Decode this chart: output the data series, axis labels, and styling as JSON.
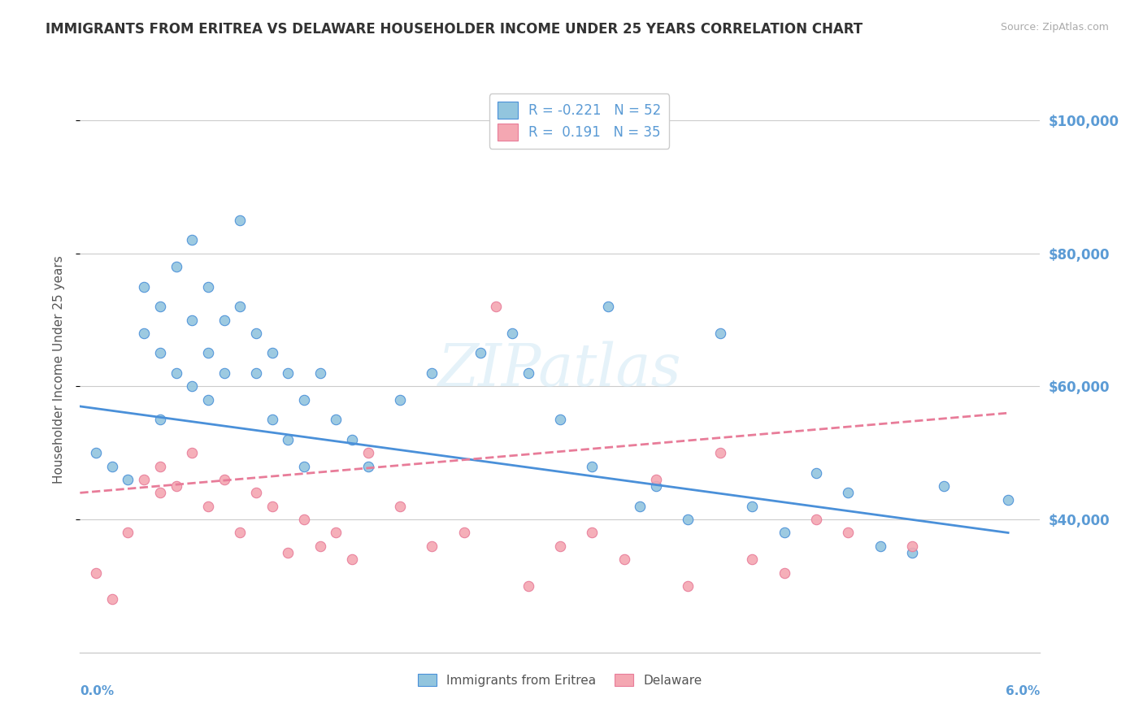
{
  "title": "IMMIGRANTS FROM ERITREA VS DELAWARE HOUSEHOLDER INCOME UNDER 25 YEARS CORRELATION CHART",
  "source": "Source: ZipAtlas.com",
  "ylabel": "Householder Income Under 25 years",
  "legend_label1": "Immigrants from Eritrea",
  "legend_label2": "Delaware",
  "r1": -0.221,
  "n1": 52,
  "r2": 0.191,
  "n2": 35,
  "color_blue": "#92c5de",
  "color_pink": "#f4a7b2",
  "line_blue": "#4a90d9",
  "line_pink": "#e87c99",
  "watermark": "ZIPatlas",
  "xmin": 0.0,
  "xmax": 0.06,
  "ymin": 20000,
  "ymax": 105000,
  "yticks": [
    40000,
    60000,
    80000,
    100000
  ],
  "ytick_labels": [
    "$40,000",
    "$60,000",
    "$80,000",
    "$100,000"
  ],
  "blue_scatter_x": [
    0.001,
    0.002,
    0.003,
    0.004,
    0.004,
    0.005,
    0.005,
    0.005,
    0.006,
    0.006,
    0.007,
    0.007,
    0.007,
    0.008,
    0.008,
    0.008,
    0.009,
    0.009,
    0.01,
    0.01,
    0.011,
    0.011,
    0.012,
    0.012,
    0.013,
    0.013,
    0.014,
    0.014,
    0.015,
    0.016,
    0.017,
    0.018,
    0.02,
    0.022,
    0.025,
    0.027,
    0.028,
    0.03,
    0.032,
    0.033,
    0.035,
    0.036,
    0.038,
    0.04,
    0.042,
    0.044,
    0.046,
    0.048,
    0.05,
    0.052,
    0.054,
    0.058
  ],
  "blue_scatter_y": [
    50000,
    48000,
    46000,
    75000,
    68000,
    72000,
    65000,
    55000,
    78000,
    62000,
    82000,
    70000,
    60000,
    75000,
    65000,
    58000,
    70000,
    62000,
    85000,
    72000,
    68000,
    62000,
    65000,
    55000,
    62000,
    52000,
    58000,
    48000,
    62000,
    55000,
    52000,
    48000,
    58000,
    62000,
    65000,
    68000,
    62000,
    55000,
    48000,
    72000,
    42000,
    45000,
    40000,
    68000,
    42000,
    38000,
    47000,
    44000,
    36000,
    35000,
    45000,
    43000
  ],
  "pink_scatter_x": [
    0.001,
    0.002,
    0.003,
    0.004,
    0.005,
    0.005,
    0.006,
    0.007,
    0.008,
    0.009,
    0.01,
    0.011,
    0.012,
    0.013,
    0.014,
    0.015,
    0.016,
    0.017,
    0.018,
    0.02,
    0.022,
    0.024,
    0.026,
    0.028,
    0.03,
    0.032,
    0.034,
    0.036,
    0.038,
    0.04,
    0.042,
    0.044,
    0.046,
    0.048,
    0.052
  ],
  "pink_scatter_y": [
    32000,
    28000,
    38000,
    46000,
    44000,
    48000,
    45000,
    50000,
    42000,
    46000,
    38000,
    44000,
    42000,
    35000,
    40000,
    36000,
    38000,
    34000,
    50000,
    42000,
    36000,
    38000,
    72000,
    30000,
    36000,
    38000,
    34000,
    46000,
    30000,
    50000,
    34000,
    32000,
    40000,
    38000,
    36000
  ],
  "blue_line_x": [
    0.0,
    0.058
  ],
  "blue_line_y": [
    57000,
    38000
  ],
  "pink_line_x": [
    0.0,
    0.058
  ],
  "pink_line_y": [
    44000,
    56000
  ],
  "grid_color": "#cccccc",
  "background_color": "#ffffff",
  "title_color": "#333333",
  "axis_label_color": "#555555",
  "tick_label_color_right": "#5b9bd5",
  "source_color": "#aaaaaa"
}
